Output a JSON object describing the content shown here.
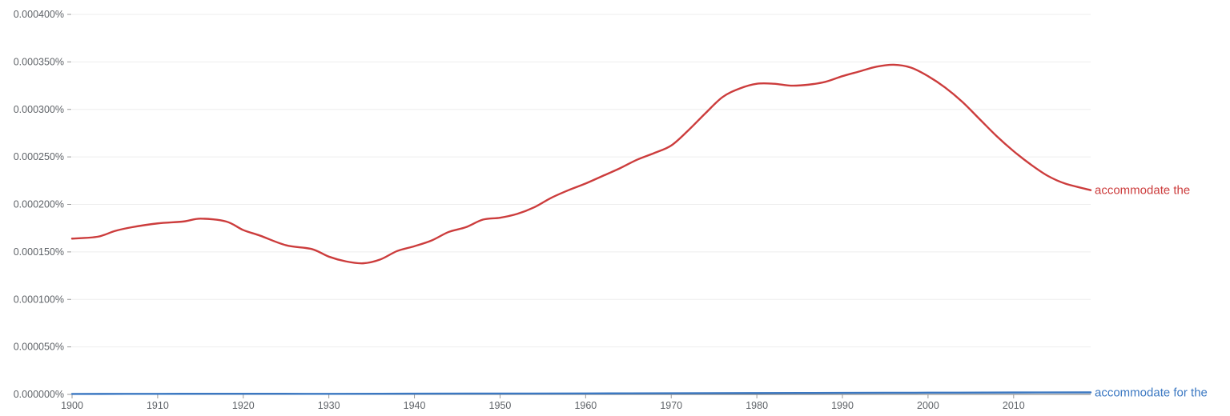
{
  "chart_data": {
    "type": "line",
    "title": "",
    "xlabel": "",
    "ylabel": "",
    "xlim": [
      1900,
      2019
    ],
    "ylim": [
      0,
      0.0004
    ],
    "grid": true,
    "x_ticks": [
      1900,
      1910,
      1920,
      1930,
      1940,
      1950,
      1960,
      1970,
      1980,
      1990,
      2000,
      2010
    ],
    "x_tick_labels": [
      "1900",
      "1910",
      "1920",
      "1930",
      "1940",
      "1950",
      "1960",
      "1970",
      "1980",
      "1990",
      "2000",
      "2010"
    ],
    "y_ticks": [
      0,
      5e-05,
      0.0001,
      0.00015,
      0.0002,
      0.00025,
      0.0003,
      0.00035,
      0.0004
    ],
    "y_tick_labels": [
      "0.000000%",
      "0.000050%",
      "0.000100%",
      "0.000150%",
      "0.000200%",
      "0.000250%",
      "0.000300%",
      "0.000350%",
      "0.000400%"
    ],
    "series": [
      {
        "name": "accommodate the",
        "color": "#cc3c3c",
        "points": [
          [
            1900,
            0.000164
          ],
          [
            1903,
            0.000166
          ],
          [
            1905,
            0.000172
          ],
          [
            1907,
            0.000176
          ],
          [
            1910,
            0.00018
          ],
          [
            1913,
            0.000182
          ],
          [
            1915,
            0.000185
          ],
          [
            1918,
            0.000182
          ],
          [
            1920,
            0.000173
          ],
          [
            1922,
            0.000167
          ],
          [
            1925,
            0.000157
          ],
          [
            1928,
            0.000153
          ],
          [
            1930,
            0.000145
          ],
          [
            1932,
            0.00014
          ],
          [
            1934,
            0.000138
          ],
          [
            1936,
            0.000142
          ],
          [
            1938,
            0.000151
          ],
          [
            1940,
            0.000156
          ],
          [
            1942,
            0.000162
          ],
          [
            1944,
            0.000171
          ],
          [
            1946,
            0.000176
          ],
          [
            1948,
            0.000184
          ],
          [
            1950,
            0.000186
          ],
          [
            1952,
            0.00019
          ],
          [
            1954,
            0.000197
          ],
          [
            1956,
            0.000207
          ],
          [
            1958,
            0.000215
          ],
          [
            1960,
            0.000222
          ],
          [
            1962,
            0.00023
          ],
          [
            1964,
            0.000238
          ],
          [
            1966,
            0.000247
          ],
          [
            1968,
            0.000254
          ],
          [
            1970,
            0.000262
          ],
          [
            1972,
            0.000278
          ],
          [
            1974,
            0.000296
          ],
          [
            1976,
            0.000313
          ],
          [
            1978,
            0.000322
          ],
          [
            1980,
            0.000327
          ],
          [
            1982,
            0.000327
          ],
          [
            1984,
            0.000325
          ],
          [
            1986,
            0.000326
          ],
          [
            1988,
            0.000329
          ],
          [
            1990,
            0.000335
          ],
          [
            1992,
            0.00034
          ],
          [
            1994,
            0.000345
          ],
          [
            1996,
            0.000347
          ],
          [
            1998,
            0.000344
          ],
          [
            2000,
            0.000335
          ],
          [
            2002,
            0.000323
          ],
          [
            2004,
            0.000308
          ],
          [
            2006,
            0.00029
          ],
          [
            2008,
            0.000272
          ],
          [
            2010,
            0.000256
          ],
          [
            2012,
            0.000242
          ],
          [
            2014,
            0.00023
          ],
          [
            2016,
            0.000222
          ],
          [
            2019,
            0.000215
          ]
        ]
      },
      {
        "name": "accommodate for the",
        "color": "#3b78c2",
        "points": [
          [
            1900,
            5e-07
          ],
          [
            1910,
            6e-07
          ],
          [
            1920,
            7e-07
          ],
          [
            1930,
            6e-07
          ],
          [
            1940,
            8e-07
          ],
          [
            1950,
            9e-07
          ],
          [
            1960,
            1e-06
          ],
          [
            1970,
            1.2e-06
          ],
          [
            1980,
            1.4e-06
          ],
          [
            1990,
            1.6e-06
          ],
          [
            2000,
            1.8e-06
          ],
          [
            2010,
            2e-06
          ],
          [
            2019,
            2.1e-06
          ]
        ]
      }
    ]
  }
}
